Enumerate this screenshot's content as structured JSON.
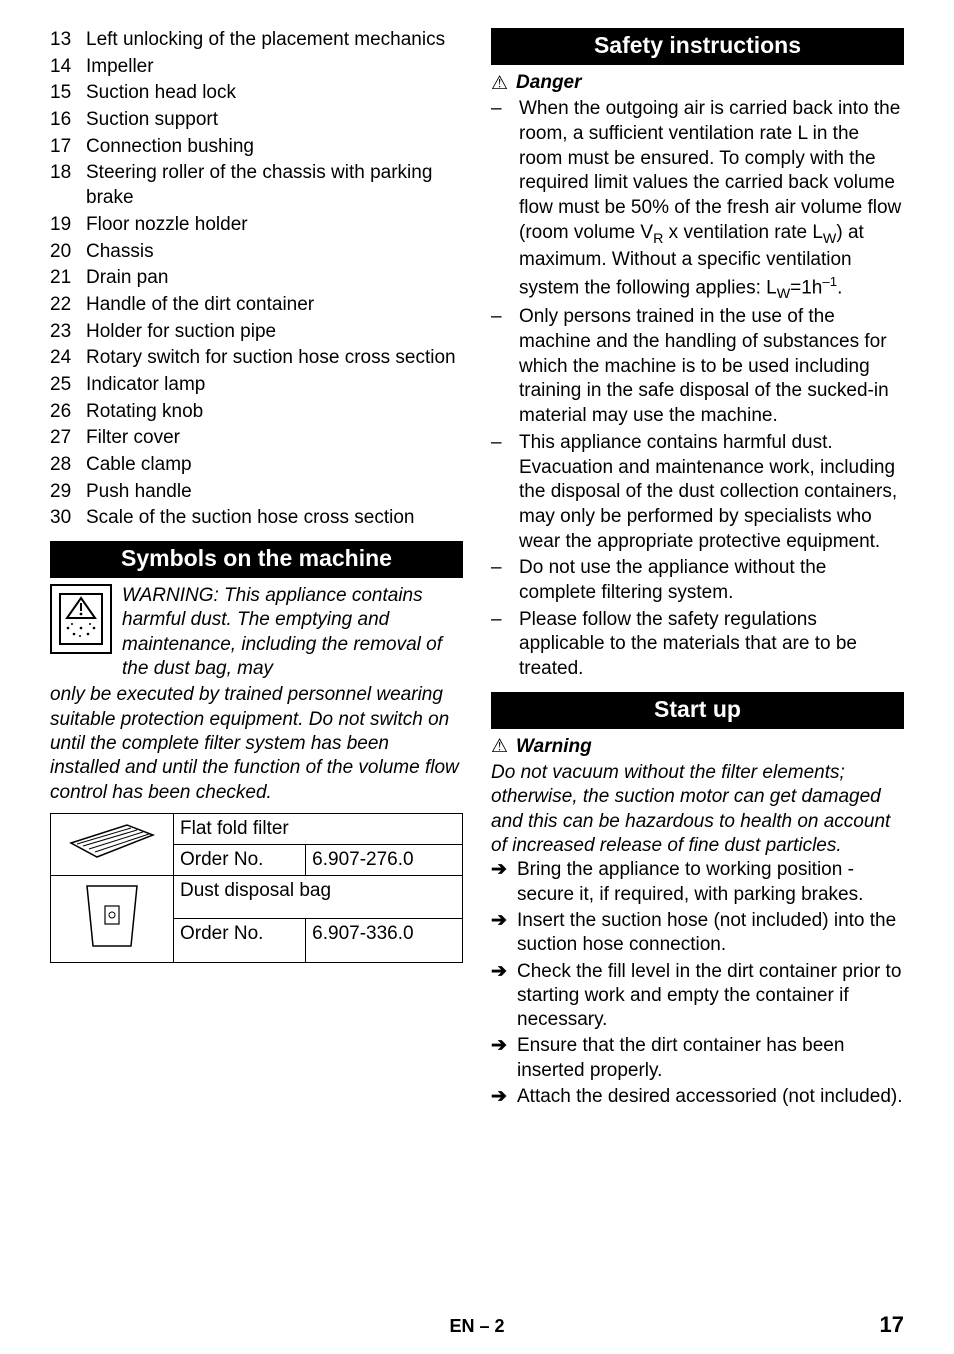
{
  "left": {
    "numbered": [
      {
        "n": "13",
        "t": "Left unlocking of the placement mechanics"
      },
      {
        "n": "14",
        "t": "Impeller"
      },
      {
        "n": "15",
        "t": "Suction head lock"
      },
      {
        "n": "16",
        "t": "Suction support"
      },
      {
        "n": "17",
        "t": "Connection bushing"
      },
      {
        "n": "18",
        "t": "Steering roller of the chassis with parking brake"
      },
      {
        "n": "19",
        "t": "Floor nozzle holder"
      },
      {
        "n": "20",
        "t": "Chassis"
      },
      {
        "n": "21",
        "t": "Drain pan"
      },
      {
        "n": "22",
        "t": "Handle of the dirt container"
      },
      {
        "n": "23",
        "t": "Holder for suction pipe"
      },
      {
        "n": "24",
        "t": "Rotary switch for suction hose cross section"
      },
      {
        "n": "25",
        "t": "Indicator lamp"
      },
      {
        "n": "26",
        "t": "Rotating knob"
      },
      {
        "n": "27",
        "t": "Filter cover"
      },
      {
        "n": "28",
        "t": "Cable clamp"
      },
      {
        "n": "29",
        "t": "Push handle"
      },
      {
        "n": "30",
        "t": "Scale of the suction hose cross section"
      }
    ],
    "section_title": "Symbols on the machine",
    "warn_text_1": "WARNING: This appliance contains harmful dust. The emptying and maintenance, including the removal of the dust bag, may ",
    "warn_text_2": "only be executed by trained personnel wearing suitable protection equipment. Do not switch on until the complete filter system has been installed and until the function of the volume flow control has been checked.",
    "table": {
      "row1_title": "Flat fold filter",
      "row1_label": "Order No.",
      "row1_val": "6.907-276.0",
      "row2_title": "Dust disposal bag",
      "row2_label": "Order No.",
      "row2_val": "6.907-336.0"
    }
  },
  "right": {
    "section1_title": "Safety instructions",
    "danger_label": "Danger",
    "danger_items": {
      "i0_pre": "When the outgoing air is carried back into the room, a sufficient ventilation rate L in the room must be ensured. To comply with the required limit values the carried back volume flow must be 50% of the fresh air volume flow (room volume V",
      "i0_mid1": " x ventilation rate L",
      "i0_mid2": ") at maximum. Without a specific ventilation system the following applies: L",
      "i0_eq": "=1h",
      "i0_end": ".",
      "i1": "Only persons trained in the use of the machine and the handling of substances for which the machine is to be used including training in the safe disposal of the sucked-in material may use the machine.",
      "i2": "This appliance contains harmful dust. Evacuation and maintenance work, including the disposal of the dust collection containers, may only be performed by specialists who wear the appropriate protective equipment.",
      "i3": "Do not use the appliance without the complete filtering system.",
      "i4": "Please follow the safety regulations applicable to the materials that are to be treated."
    },
    "section2_title": "Start up",
    "warning_label": "Warning",
    "warning_text": "Do not vacuum without the filter elements; otherwise, the suction motor can get damaged and this can be hazardous to health on account of increased release of fine dust particles.",
    "arrows": [
      "Bring the appliance to working position - secure it, if required, with parking brakes.",
      "Insert the suction hose (not included) into the suction hose connection.",
      "Check the fill level in the dirt container prior to starting work and empty the container if necessary.",
      "Ensure that the dirt container has been inserted properly.",
      "Attach the desired accessoried (not included)."
    ]
  },
  "footer": {
    "center": "EN – 2",
    "page": "17"
  },
  "glyphs": {
    "dash": "–",
    "arrow": "➔",
    "tri": "⚠"
  }
}
